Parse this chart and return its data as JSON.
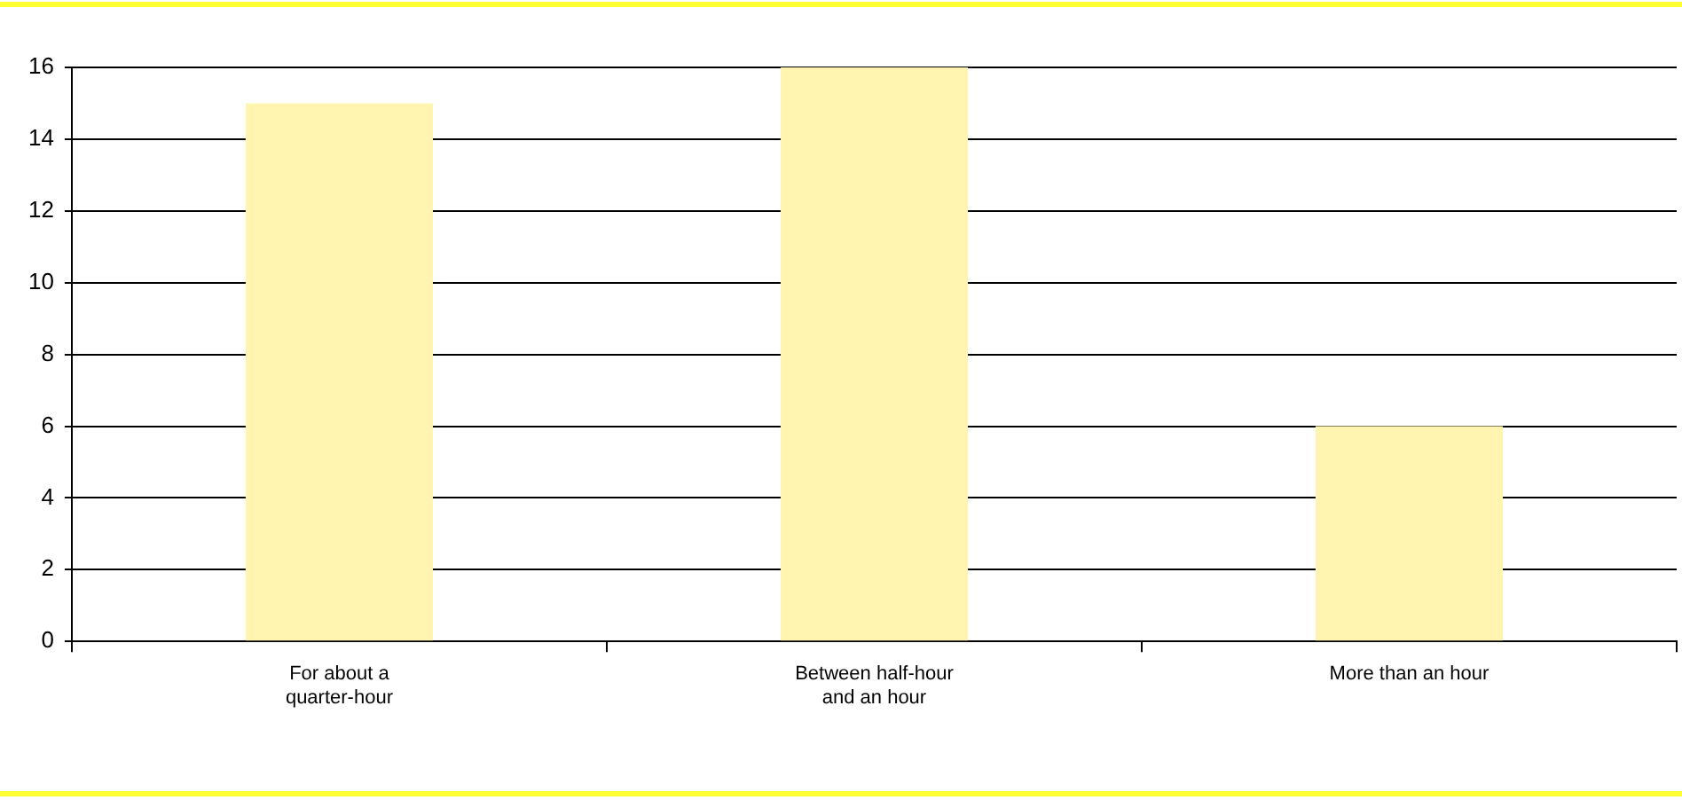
{
  "chart_data": {
    "type": "bar",
    "categories": [
      "For about a quarter-hour",
      "Between half-hour and an hour",
      "More than an hour"
    ],
    "values": [
      15,
      16,
      6
    ],
    "color": "#fff5b0",
    "ylim": [
      0,
      16
    ],
    "yticks": [
      0,
      2,
      4,
      6,
      8,
      10,
      12,
      14,
      16
    ],
    "grid": "y",
    "legend": false
  }
}
